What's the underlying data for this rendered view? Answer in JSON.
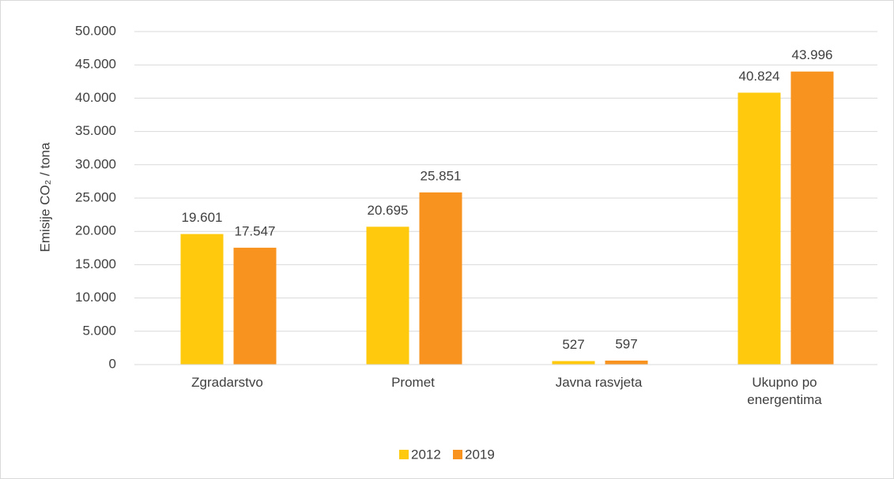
{
  "chart_data": {
    "type": "bar",
    "y_label": "Emisije CO₂ / tona",
    "categories": [
      "Zgradarstvo",
      "Promet",
      "Javna rasvjeta",
      "Ukupno po energentima"
    ],
    "series": [
      {
        "name": "2012",
        "color": "#ffc90e",
        "values": [
          19601,
          20695,
          527,
          40824
        ],
        "value_labels": [
          "19.601",
          "20.695",
          "527",
          "40.824"
        ]
      },
      {
        "name": "2019",
        "color": "#f7931e",
        "values": [
          17547,
          25851,
          597,
          43996
        ],
        "value_labels": [
          "17.547",
          "25.851",
          "597",
          "43.996"
        ]
      }
    ],
    "ylim": [
      0,
      50000
    ],
    "yticks": [
      0,
      {
        "value": 5000,
        "label": "5.000"
      },
      {
        "value": 10000,
        "label": "10.000"
      },
      {
        "value": 15000,
        "label": "15.000"
      },
      {
        "value": 20000,
        "label": "20.000"
      },
      {
        "value": 25000,
        "label": "25.000"
      },
      {
        "value": 30000,
        "label": "30.000"
      },
      {
        "value": 35000,
        "label": "35.000"
      },
      {
        "value": 40000,
        "label": "40.000"
      },
      {
        "value": 45000,
        "label": "45.000"
      },
      {
        "value": 50000,
        "label": "50.000"
      }
    ],
    "grid": true,
    "legend": "bottom"
  }
}
